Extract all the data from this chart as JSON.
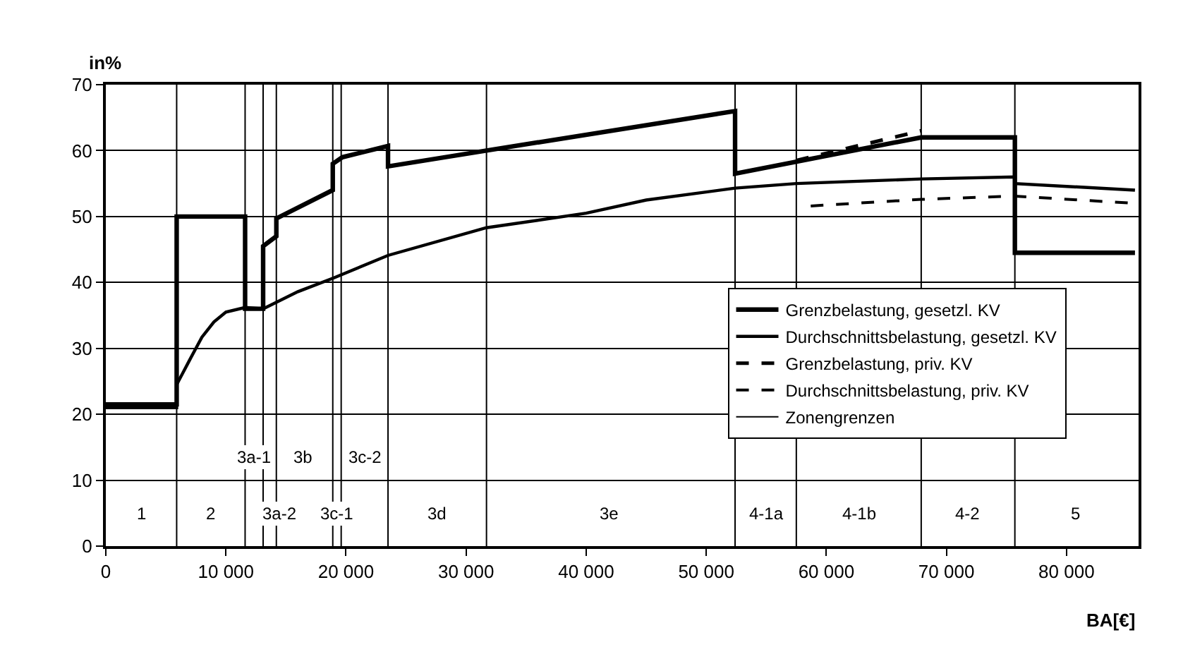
{
  "chart_data": {
    "type": "line",
    "ylabel": "in%",
    "xlabel": "BA[€]",
    "xlim": [
      0,
      86000
    ],
    "ylim": [
      0,
      70
    ],
    "xticks": [
      {
        "value": 0,
        "label": "0"
      },
      {
        "value": 10000,
        "label": "10 000"
      },
      {
        "value": 20000,
        "label": "20 000"
      },
      {
        "value": 30000,
        "label": "30 000"
      },
      {
        "value": 40000,
        "label": "40 000"
      },
      {
        "value": 50000,
        "label": "50 000"
      },
      {
        "value": 60000,
        "label": "60 000"
      },
      {
        "value": 70000,
        "label": "70 000"
      },
      {
        "value": 80000,
        "label": "80 000"
      }
    ],
    "yticks": [
      0,
      10,
      20,
      30,
      40,
      50,
      60,
      70
    ],
    "grid": "y",
    "legend": "right",
    "marker": "none",
    "series": [
      {
        "name": "Grenzbelastung, gesetzl. KV",
        "color": "#000000",
        "line_style": "solid",
        "x": [
          0,
          5900,
          5900,
          11600,
          11600,
          13100,
          13100,
          14200,
          14200,
          18900,
          18900,
          19700,
          23500,
          23500,
          31700,
          52400,
          52400,
          67900,
          75700,
          75700,
          85700
        ],
        "values": [
          21.5,
          21.5,
          50,
          50,
          36,
          36,
          45.5,
          47,
          49.7,
          54,
          58,
          59,
          60.7,
          57.6,
          60,
          66,
          56.5,
          62,
          62,
          44.5,
          44.5
        ]
      },
      {
        "name": "Durchschnittsbelastung, gesetzl. KV",
        "color": "#000000",
        "line_style": "solid",
        "x": [
          0,
          5900,
          5900,
          7000,
          8000,
          9000,
          10000,
          11600,
          13100,
          16000,
          19000,
          23500,
          31700,
          40000,
          45000,
          52400,
          57500,
          67900,
          75700,
          75700,
          85700
        ],
        "values": [
          21,
          21,
          24.5,
          28.3,
          31.7,
          34,
          35.5,
          36.2,
          36,
          38.6,
          40.7,
          44.1,
          48.3,
          50.5,
          52.5,
          54.3,
          55,
          55.7,
          56,
          55,
          54
        ]
      },
      {
        "name": "Grenzbelastung, priv. KV",
        "color": "#000000",
        "line_style": "dashed",
        "x": [
          57500,
          67900
        ],
        "values": [
          58.5,
          63
        ]
      },
      {
        "name": "Durchschnittsbelastung, priv. KV",
        "color": "#000000",
        "line_style": "dashed",
        "x": [
          58700,
          67900,
          75700,
          85700
        ],
        "values": [
          51.6,
          52.6,
          53.1,
          52
        ]
      },
      {
        "name": "Zonengrenzen",
        "color": "#000000",
        "line_style": "solid",
        "x": [
          5900,
          5900,
          null,
          11600,
          11600,
          null,
          13100,
          13100,
          null,
          14200,
          14200,
          null,
          18900,
          18900,
          null,
          19600,
          19600,
          null,
          23500,
          23500,
          null,
          31700,
          31700,
          null,
          52400,
          52400,
          null,
          57500,
          57500,
          null,
          67900,
          67900,
          null,
          75700,
          75700
        ],
        "values": [
          0,
          70,
          null,
          0,
          70,
          null,
          0,
          70,
          null,
          0,
          70,
          null,
          0,
          70,
          null,
          0,
          70,
          null,
          0,
          70,
          null,
          0,
          70,
          null,
          0,
          70,
          null,
          0,
          70,
          null,
          0,
          70,
          null,
          0,
          70
        ]
      }
    ],
    "annotations": [
      {
        "text": "1",
        "x": 3000,
        "y": 5
      },
      {
        "text": "2",
        "x": 8800,
        "y": 5
      },
      {
        "text": "3a-1",
        "x": 12300,
        "y": 13.5
      },
      {
        "text": "3a-2",
        "x": 14400,
        "y": 5
      },
      {
        "text": "3b",
        "x": 16500,
        "y": 13.5
      },
      {
        "text": "3c-1",
        "x": 19300,
        "y": 5
      },
      {
        "text": "3c-2",
        "x": 21600,
        "y": 13.5
      },
      {
        "text": "3d",
        "x": 27600,
        "y": 5
      },
      {
        "text": "3e",
        "x": 42000,
        "y": 5
      },
      {
        "text": "4-1a",
        "x": 55000,
        "y": 5
      },
      {
        "text": "4-1b",
        "x": 62700,
        "y": 5
      },
      {
        "text": "4-2",
        "x": 71800,
        "y": 5
      },
      {
        "text": "5",
        "x": 80800,
        "y": 5
      }
    ]
  }
}
